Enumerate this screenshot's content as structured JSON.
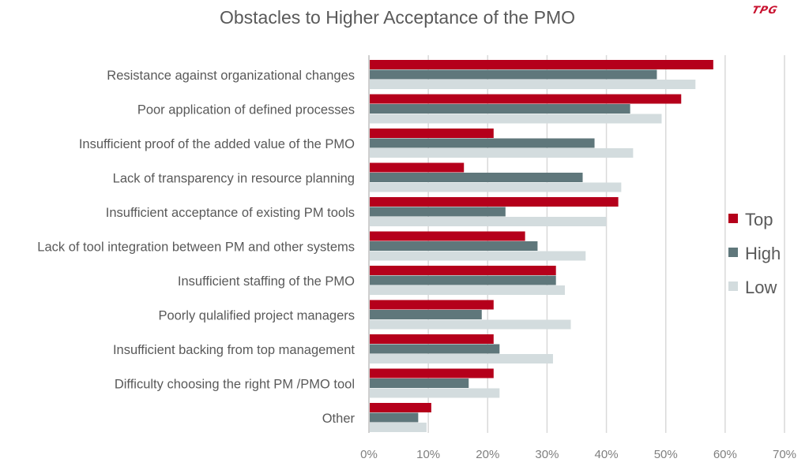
{
  "chart_data": {
    "type": "bar",
    "orientation": "horizontal",
    "title": "Obstacles to Higher Acceptance of the PMO",
    "categories": [
      "Resistance against organizational changes",
      "Poor application of defined processes",
      "Insufficient proof of the added value of the PMO",
      "Lack of transparency in resource planning",
      "Insufficient acceptance of existing PM tools",
      "Lack of tool integration between PM and other systems",
      "Insufficient staffing of the PMO",
      "Poorly qulalified project managers",
      "Insufficient backing from top management",
      "Difficulty choosing the right PM /PMO tool",
      "Other"
    ],
    "series": [
      {
        "name": "Top",
        "color": "#b5001b",
        "values": [
          58,
          52.6,
          21,
          16,
          42,
          26.3,
          31.5,
          21,
          21,
          21,
          10.5
        ]
      },
      {
        "name": "High",
        "color": "#5f777b",
        "values": [
          48.5,
          44,
          38,
          36,
          23,
          28.4,
          31.5,
          19,
          22,
          16.8,
          8.3
        ]
      },
      {
        "name": "Low",
        "color": "#d3dcde",
        "values": [
          55,
          49.3,
          44.5,
          42.5,
          40,
          36.5,
          33,
          34,
          31,
          22,
          9.7
        ]
      }
    ],
    "xlim": [
      0,
      70
    ],
    "xticks": [
      "0%",
      "10%",
      "20%",
      "30%",
      "40%",
      "50%",
      "60%",
      "70%"
    ],
    "xlabel": "",
    "ylabel": "",
    "grid": "vertical",
    "legend": "right"
  },
  "logo": "TPG"
}
